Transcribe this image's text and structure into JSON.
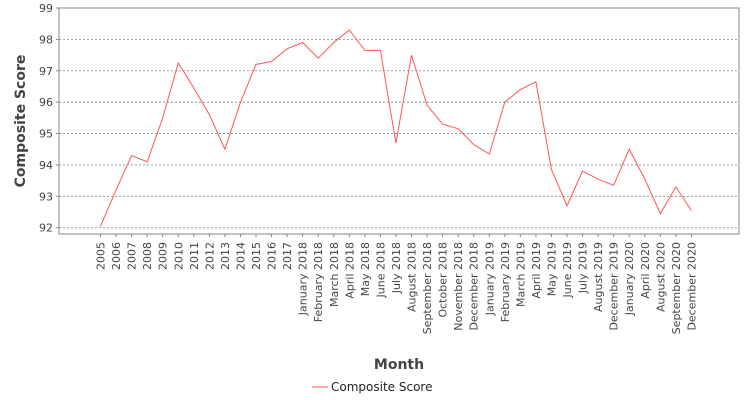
{
  "chart_data": {
    "type": "line",
    "title": "",
    "xlabel": "Month",
    "ylabel": "Composite Score",
    "ylim": [
      91.8,
      99.0
    ],
    "yticks": [
      92,
      93,
      94,
      95,
      96,
      97,
      98,
      99
    ],
    "grid": true,
    "legend_position": "bottom-center",
    "categories": [
      "2005",
      "2006",
      "2007",
      "2008",
      "2009",
      "2010",
      "2011",
      "2012",
      "2013",
      "2014",
      "2015",
      "2016",
      "2017",
      "January 2018",
      "February 2018",
      "March 2018",
      "April 2018",
      "May 2018",
      "June 2018",
      "July 2018",
      "August 2018",
      "September 2018",
      "October 2018",
      "November 2018",
      "December 2018",
      "January 2019",
      "February 2019",
      "March 2019",
      "April 2019",
      "May 2019",
      "June 2019",
      "July 2019",
      "August 2019",
      "December 2019",
      "January 2020",
      "April 2020",
      "August 2020",
      "September 2020",
      "December 2020"
    ],
    "series": [
      {
        "name": "Composite Score",
        "color": "#ff5555",
        "values": [
          92.05,
          93.2,
          94.3,
          94.1,
          95.5,
          97.25,
          96.45,
          95.6,
          94.5,
          96.0,
          97.2,
          97.3,
          97.7,
          97.9,
          97.4,
          97.9,
          98.3,
          97.65,
          97.65,
          94.7,
          97.5,
          95.9,
          95.3,
          95.15,
          94.65,
          94.35,
          96.0,
          96.4,
          96.65,
          93.85,
          92.7,
          93.8,
          93.55,
          93.35,
          94.5,
          93.55,
          92.45,
          93.3,
          92.55
        ]
      }
    ]
  }
}
